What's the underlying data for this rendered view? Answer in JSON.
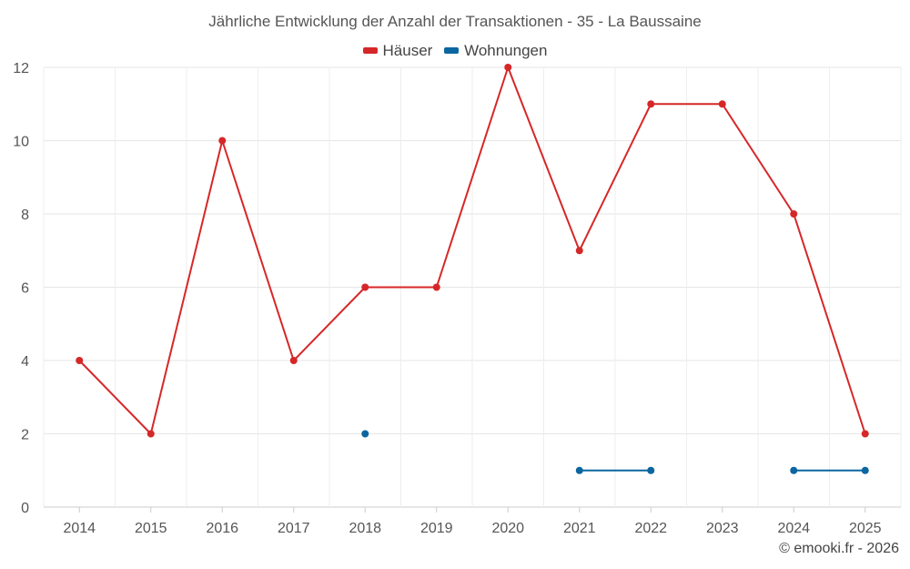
{
  "chart_data": {
    "type": "line",
    "title": "Jährliche Entwicklung der Anzahl der Transaktionen - 35 - La Baussaine",
    "xlabel": "",
    "ylabel": "",
    "categories": [
      "2014",
      "2015",
      "2016",
      "2017",
      "2018",
      "2019",
      "2020",
      "2021",
      "2022",
      "2023",
      "2024",
      "2025"
    ],
    "ylim": [
      0,
      12
    ],
    "yticks": [
      0,
      2,
      4,
      6,
      8,
      10,
      12
    ],
    "grid": true,
    "legend_position": "top-center",
    "series": [
      {
        "name": "Häuser",
        "color": "#d62728",
        "values": [
          4,
          2,
          10,
          4,
          6,
          6,
          12,
          7,
          11,
          11,
          8,
          2
        ]
      },
      {
        "name": "Wohnungen",
        "color": "#0b66a0",
        "values": [
          null,
          null,
          null,
          null,
          2,
          null,
          null,
          1,
          1,
          null,
          1,
          1
        ]
      }
    ]
  },
  "credit": "© emooki.fr - 2026"
}
